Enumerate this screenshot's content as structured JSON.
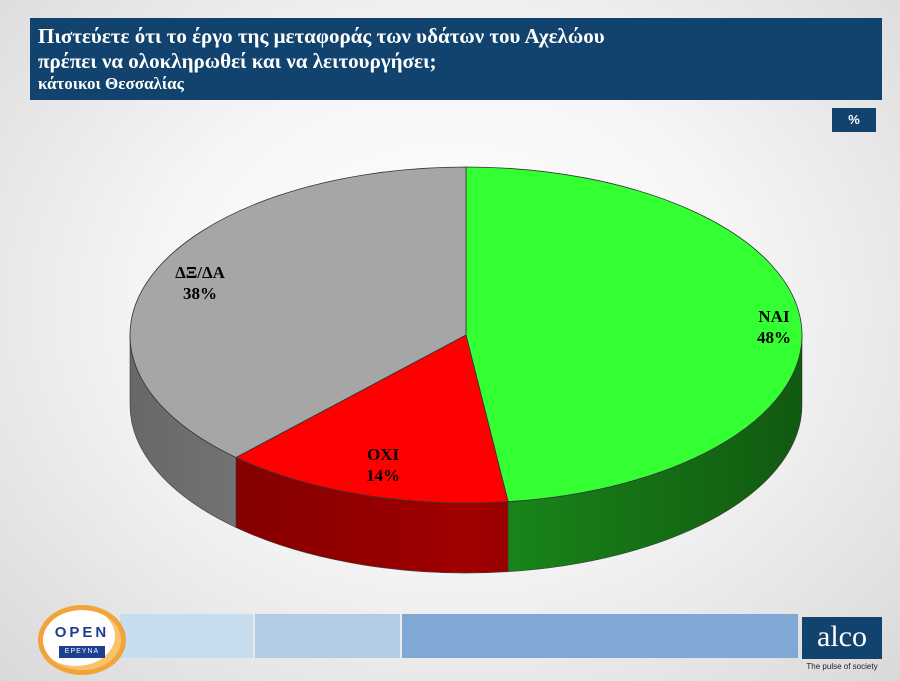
{
  "header": {
    "title_line1": "Πιστεύετε ότι το έργο της μεταφοράς των υδάτων του Αχελώου",
    "title_line2": "πρέπει να ολοκληρωθεί και να λειτουργήσει;",
    "subtitle": "κάτοικοι Θεσσαλίας",
    "unit": "%"
  },
  "chart_data": {
    "type": "pie",
    "style": "3d",
    "unit": "%",
    "slices": [
      {
        "label": "ΝΑΙ",
        "value": 48,
        "display": "48%",
        "color": "#33ff33",
        "side_color": "#1a8a1a"
      },
      {
        "label": "ΟΧΙ",
        "value": 14,
        "display": "14%",
        "color": "#ff0000",
        "side_color": "#a00000"
      },
      {
        "label": "ΔΞ/ΔΑ",
        "value": 38,
        "display": "38%",
        "color": "#a6a6a6",
        "side_color": "#8a8a8a"
      }
    ]
  },
  "footer": {
    "open_logo_text": "OPEN",
    "open_logo_sub": "ΕΡΕΥΝΑ",
    "brand": "alco",
    "brand_tagline": "The pulse of society"
  }
}
